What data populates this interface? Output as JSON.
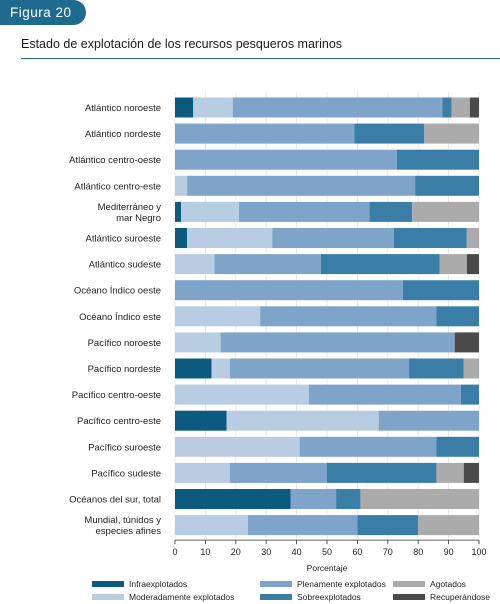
{
  "figure_label": "Figura 20",
  "chart_data": {
    "type": "bar",
    "orientation": "horizontal",
    "stacked": true,
    "title": "Estado de explotación de los recursos pesqueros marinos",
    "xlabel": "Porcentaje",
    "xlim": [
      0,
      100
    ],
    "xticks": [
      0,
      10,
      20,
      30,
      40,
      50,
      60,
      70,
      80,
      90,
      100
    ],
    "grid": true,
    "legend_position": "bottom",
    "categories": [
      "Atlántico noroeste",
      "Atlántico nordeste",
      "Atlántico centro-oeste",
      "Atlántico centro-este",
      "Mediterráneo y mar Negro",
      "Atlántico suroeste",
      "Atlántico sudeste",
      "Océano Índico oeste",
      "Océano Índico este",
      "Pacífico noroeste",
      "Pacífico nordeste",
      "Pacífico centro-oeste",
      "Pacífico centro-este",
      "Pacífico suroeste",
      "Pacífico sudeste",
      "Océanos del sur, total",
      "Mundial, túnidos y especies afines"
    ],
    "category_lines": [
      [
        "Atlántico noroeste"
      ],
      [
        "Atlántico nordeste"
      ],
      [
        "Atlántico centro-oeste"
      ],
      [
        "Atlántico centro-este"
      ],
      [
        "Mediterráneo y",
        "mar Negro"
      ],
      [
        "Atlántico suroeste"
      ],
      [
        "Atlántico sudeste"
      ],
      [
        "Océano Índico oeste"
      ],
      [
        "Océano Índico este"
      ],
      [
        "Pacífico noroeste"
      ],
      [
        "Pacífico nordeste"
      ],
      [
        "Pacífico centro-oeste"
      ],
      [
        "Pacífico centro-este"
      ],
      [
        "Pacífico suroeste"
      ],
      [
        "Pacífico sudeste"
      ],
      [
        "Océanos del sur, total"
      ],
      [
        "Mundial, túnidos y",
        "especies afines"
      ]
    ],
    "series": [
      {
        "name": "Infraexplotados",
        "color": "#0d5a80",
        "values": [
          6,
          0,
          0,
          0,
          2,
          4,
          0,
          0,
          0,
          0,
          12,
          0,
          17,
          0,
          0,
          38,
          0
        ]
      },
      {
        "name": "Moderadamente explotados",
        "color": "#b8cde2",
        "values": [
          13,
          0,
          0,
          4,
          19,
          28,
          13,
          0,
          28,
          15,
          6,
          44,
          50,
          41,
          18,
          0,
          24
        ]
      },
      {
        "name": "Plenamente explotados",
        "color": "#7ea4c9",
        "values": [
          69,
          59,
          73,
          75,
          43,
          40,
          35,
          75,
          58,
          77,
          59,
          50,
          33,
          45,
          32,
          15,
          36
        ]
      },
      {
        "name": "Sobreexplotados",
        "color": "#3a7ea8",
        "values": [
          3,
          23,
          27,
          21,
          14,
          24,
          39,
          25,
          14,
          0,
          18,
          6,
          0,
          14,
          36,
          8,
          20
        ]
      },
      {
        "name": "Agotados",
        "color": "#ababab",
        "values": [
          6,
          18,
          0,
          0,
          22,
          4,
          9,
          0,
          0,
          0,
          5,
          0,
          0,
          0,
          9,
          39,
          20
        ]
      },
      {
        "name": "Recuperándose",
        "color": "#4a4a4a",
        "values": [
          3,
          0,
          0,
          0,
          0,
          0,
          4,
          0,
          0,
          8,
          0,
          0,
          0,
          0,
          5,
          0,
          0
        ]
      }
    ]
  }
}
